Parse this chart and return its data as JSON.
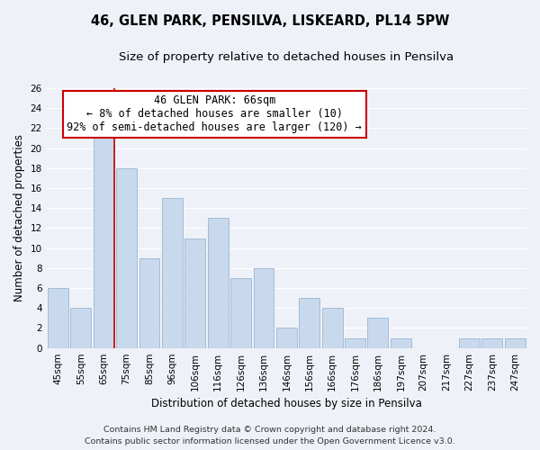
{
  "title": "46, GLEN PARK, PENSILVA, LISKEARD, PL14 5PW",
  "subtitle": "Size of property relative to detached houses in Pensilva",
  "xlabel": "Distribution of detached houses by size in Pensilva",
  "ylabel": "Number of detached properties",
  "footer_line1": "Contains HM Land Registry data © Crown copyright and database right 2024.",
  "footer_line2": "Contains public sector information licensed under the Open Government Licence v3.0.",
  "bin_labels": [
    "45sqm",
    "55sqm",
    "65sqm",
    "75sqm",
    "85sqm",
    "96sqm",
    "106sqm",
    "116sqm",
    "126sqm",
    "136sqm",
    "146sqm",
    "156sqm",
    "166sqm",
    "176sqm",
    "186sqm",
    "197sqm",
    "207sqm",
    "217sqm",
    "227sqm",
    "237sqm",
    "247sqm"
  ],
  "bar_values": [
    6,
    4,
    22,
    18,
    9,
    15,
    11,
    13,
    7,
    8,
    2,
    5,
    4,
    1,
    3,
    1,
    0,
    0,
    1,
    1,
    1
  ],
  "bar_color": "#c8d9ed",
  "bar_edge_color": "#9bb5d0",
  "highlight_line_color": "#cc0000",
  "annotation_line1": "46 GLEN PARK: 66sqm",
  "annotation_line2": "← 8% of detached houses are smaller (10)",
  "annotation_line3": "92% of semi-detached houses are larger (120) →",
  "annotation_box_color": "#ffffff",
  "annotation_box_edge": "#cc0000",
  "ylim": [
    0,
    26
  ],
  "yticks": [
    0,
    2,
    4,
    6,
    8,
    10,
    12,
    14,
    16,
    18,
    20,
    22,
    24,
    26
  ],
  "bg_color": "#eef2f8",
  "grid_color": "#ffffff",
  "title_fontsize": 10.5,
  "subtitle_fontsize": 9.5,
  "axis_label_fontsize": 8.5,
  "ylabel_fontsize": 8.5,
  "tick_fontsize": 7.5,
  "annotation_fontsize": 8.5,
  "footer_fontsize": 6.8
}
